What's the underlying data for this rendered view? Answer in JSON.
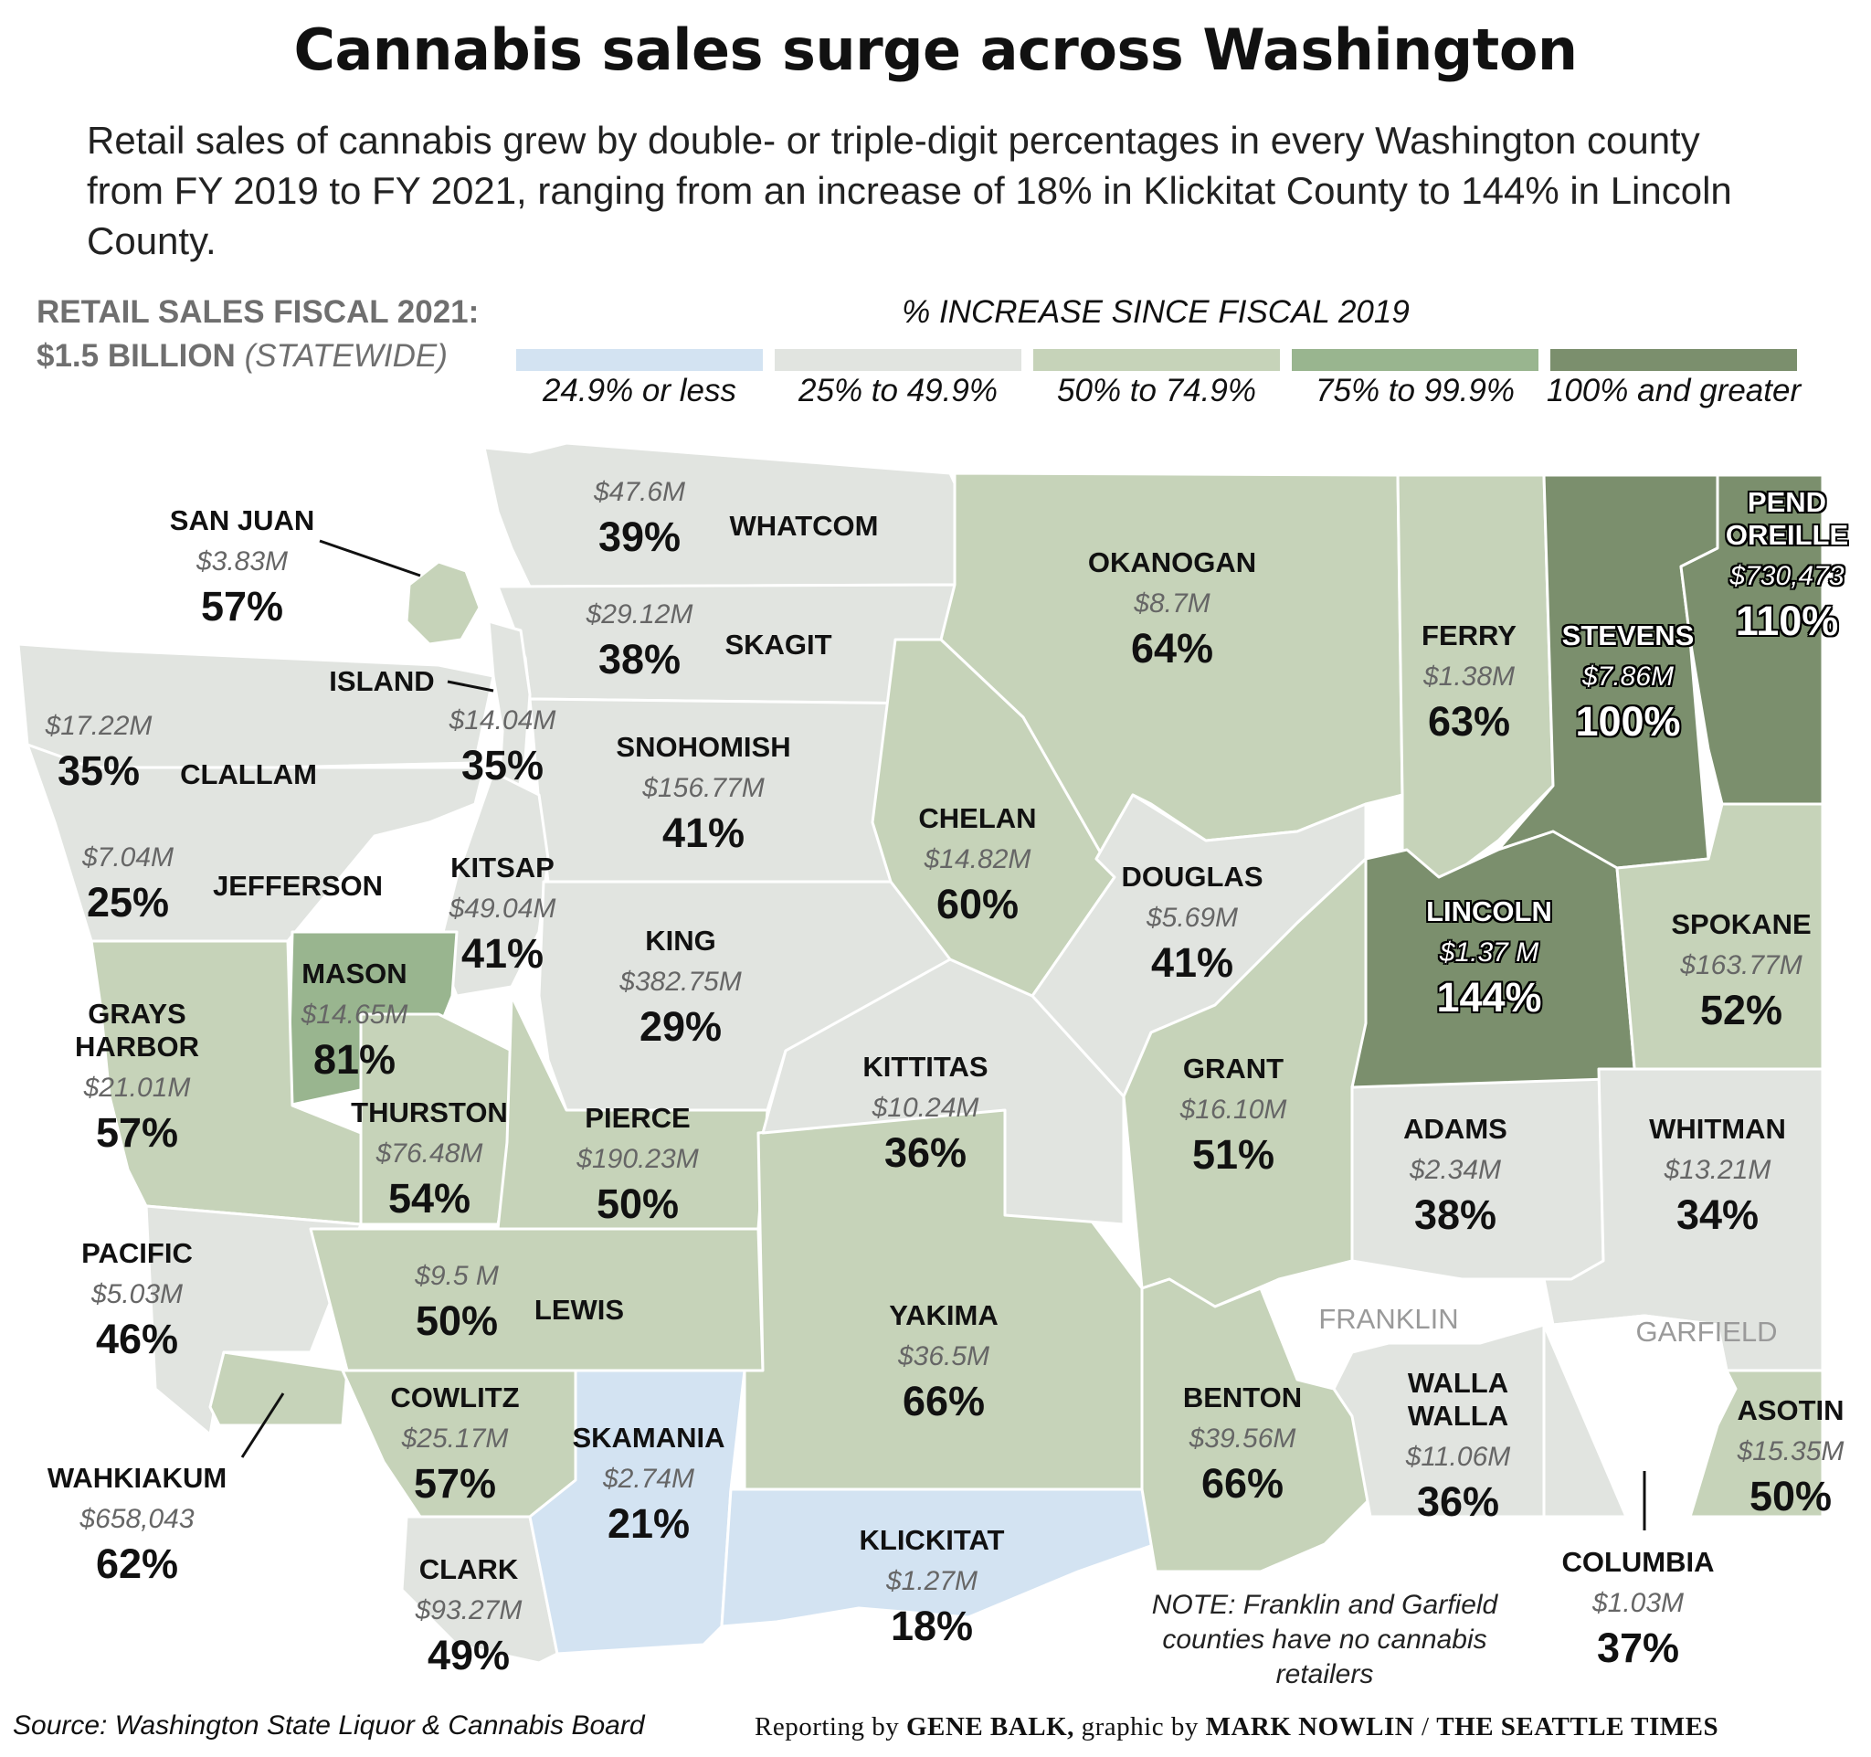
{
  "title": "Cannabis sales surge across Washington",
  "subtitle": "Retail sales of cannabis grew by double- or triple-digit percentages in every Washington county from FY 2019 to FY 2021, ranging from an increase of 18% in Klickitat County to 144% in Lincoln County.",
  "statewide": {
    "line1": "RETAIL SALES FISCAL 2021:",
    "amount": "$1.5 BILLION",
    "scope": "(STATEWIDE)"
  },
  "legend": {
    "title": "% INCREASE SINCE FISCAL 2019",
    "bins": [
      {
        "label": "24.9% or less",
        "color": "#d3e3f2"
      },
      {
        "label": "25% to 49.9%",
        "color": "#e1e4e0"
      },
      {
        "label": "50% to 74.9%",
        "color": "#c6d3b9"
      },
      {
        "label": "75% to 99.9%",
        "color": "#99b58f"
      },
      {
        "label": "100% and greater",
        "color": "#7b8f6d"
      }
    ],
    "no_data_color": "#ffffff"
  },
  "counties": {
    "san_juan": {
      "name": "SAN JUAN",
      "sales": "$3.83M",
      "pct": "57%",
      "pct_value": 57
    },
    "whatcom": {
      "name": "WHATCOM",
      "sales": "$47.6M",
      "pct": "39%",
      "pct_value": 39
    },
    "skagit": {
      "name": "SKAGIT",
      "sales": "$29.12M",
      "pct": "38%",
      "pct_value": 38
    },
    "island": {
      "name": "ISLAND",
      "sales": "$14.04M",
      "pct": "35%",
      "pct_value": 35
    },
    "clallam": {
      "name": "CLALLAM",
      "sales": "$17.22M",
      "pct": "35%",
      "pct_value": 35
    },
    "jefferson": {
      "name": "JEFFERSON",
      "sales": "$7.04M",
      "pct": "25%",
      "pct_value": 25
    },
    "snohomish": {
      "name": "SNOHOMISH",
      "sales": "$156.77M",
      "pct": "41%",
      "pct_value": 41
    },
    "kitsap": {
      "name": "KITSAP",
      "sales": "$49.04M",
      "pct": "41%",
      "pct_value": 41
    },
    "mason": {
      "name": "MASON",
      "sales": "$14.65M",
      "pct": "81%",
      "pct_value": 81
    },
    "grays_harbor": {
      "name": "GRAYS HARBOR",
      "sales": "$21.01M",
      "pct": "57%",
      "pct_value": 57
    },
    "king": {
      "name": "KING",
      "sales": "$382.75M",
      "pct": "29%",
      "pct_value": 29
    },
    "thurston": {
      "name": "THURSTON",
      "sales": "$76.48M",
      "pct": "54%",
      "pct_value": 54
    },
    "pierce": {
      "name": "PIERCE",
      "sales": "$190.23M",
      "pct": "50%",
      "pct_value": 50
    },
    "pacific": {
      "name": "PACIFIC",
      "sales": "$5.03M",
      "pct": "46%",
      "pct_value": 46
    },
    "lewis": {
      "name": "LEWIS",
      "sales": "$9.5 M",
      "pct": "50%",
      "pct_value": 50
    },
    "wahkiakum": {
      "name": "WAHKIAKUM",
      "sales": "$658,043",
      "pct": "62%",
      "pct_value": 62
    },
    "cowlitz": {
      "name": "COWLITZ",
      "sales": "$25.17M",
      "pct": "57%",
      "pct_value": 57
    },
    "clark": {
      "name": "CLARK",
      "sales": "$93.27M",
      "pct": "49%",
      "pct_value": 49
    },
    "skamania": {
      "name": "SKAMANIA",
      "sales": "$2.74M",
      "pct": "21%",
      "pct_value": 21
    },
    "klickitat": {
      "name": "KLICKITAT",
      "sales": "$1.27M",
      "pct": "18%",
      "pct_value": 18
    },
    "yakima": {
      "name": "YAKIMA",
      "sales": "$36.5M",
      "pct": "66%",
      "pct_value": 66
    },
    "kittitas": {
      "name": "KITTITAS",
      "sales": "$10.24M",
      "pct": "36%",
      "pct_value": 36
    },
    "chelan": {
      "name": "CHELAN",
      "sales": "$14.82M",
      "pct": "60%",
      "pct_value": 60
    },
    "okanogan": {
      "name": "OKANOGAN",
      "sales": "$8.7M",
      "pct": "64%",
      "pct_value": 64
    },
    "douglas": {
      "name": "DOUGLAS",
      "sales": "$5.69M",
      "pct": "41%",
      "pct_value": 41
    },
    "grant": {
      "name": "GRANT",
      "sales": "$16.10M",
      "pct": "51%",
      "pct_value": 51
    },
    "benton": {
      "name": "BENTON",
      "sales": "$39.56M",
      "pct": "66%",
      "pct_value": 66
    },
    "franklin": {
      "name": "FRANKLIN"
    },
    "walla_walla": {
      "name": "WALLA WALLA",
      "sales": "$11.06M",
      "pct": "36%",
      "pct_value": 36
    },
    "adams": {
      "name": "ADAMS",
      "sales": "$2.34M",
      "pct": "38%",
      "pct_value": 38
    },
    "ferry": {
      "name": "FERRY",
      "sales": "$1.38M",
      "pct": "63%",
      "pct_value": 63
    },
    "stevens": {
      "name": "STEVENS",
      "sales": "$7.86M",
      "pct": "100%",
      "pct_value": 100
    },
    "pend_oreille": {
      "name": "PEND OREILLE",
      "sales": "$730,473",
      "pct": "110%",
      "pct_value": 110
    },
    "lincoln": {
      "name": "LINCOLN",
      "sales": "$1.37 M",
      "pct": "144%",
      "pct_value": 144
    },
    "spokane": {
      "name": "SPOKANE",
      "sales": "$163.77M",
      "pct": "52%",
      "pct_value": 52
    },
    "whitman": {
      "name": "WHITMAN",
      "sales": "$13.21M",
      "pct": "34%",
      "pct_value": 34
    },
    "garfield": {
      "name": "GARFIELD"
    },
    "columbia": {
      "name": "COLUMBIA",
      "sales": "$1.03M",
      "pct": "37%",
      "pct_value": 37
    },
    "asotin": {
      "name": "ASOTIN",
      "sales": "$15.35M",
      "pct": "50%",
      "pct_value": 50
    }
  },
  "note": "NOTE: Franklin and Garfield counties have no cannabis retailers",
  "source": "Source: Washington State Liquor & Cannabis Board",
  "credit": {
    "prefix": "Reporting by",
    "reporter": "GENE BALK,",
    "middle": "graphic by",
    "artist": "MARK NOWLIN",
    "sep": "/",
    "outlet": "THE SEATTLE TIMES"
  }
}
